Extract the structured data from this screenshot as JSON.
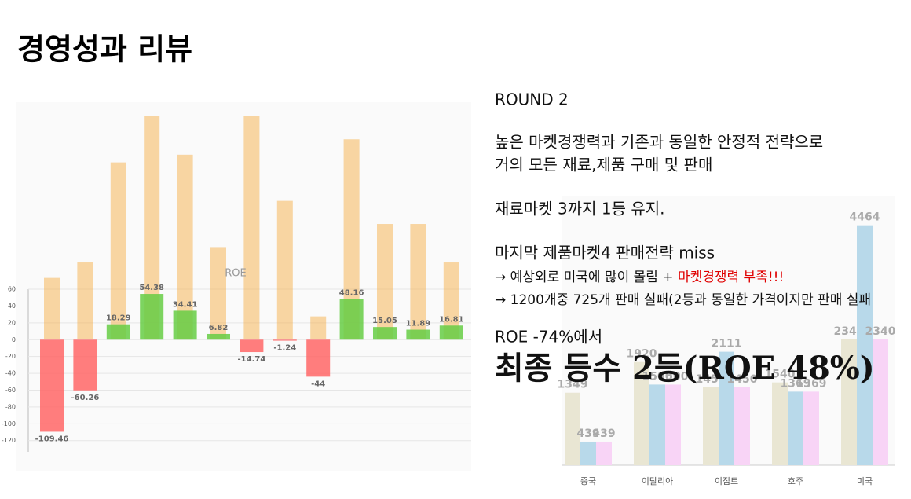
{
  "title": "경영성과 리뷰",
  "text": {
    "round": "ROUND 2",
    "p1": [
      "높은 마켓경쟁력과 기존과 동일한 안정적 전략으로",
      "거의 모든 재료,제품 구매 및 판매"
    ],
    "p2": "재료마켓 3까지 1등 유지.",
    "p3": "마지막 제품마켓4 판매전략 miss",
    "p4a": "→ 예상외로 미국에 많이 몰림 + ",
    "p4b": "마켓경쟁력 부족!!!",
    "p5": "→ 1200개중 725개 판매 실패(2등과 동일한 가격이지만 판매 실패",
    "p6": "ROE -74%에서",
    "final": "최종 등수 2등(ROE 48%)"
  },
  "chart_data": [
    {
      "type": "bar",
      "annotation": "ROE",
      "categories": [
        null,
        null,
        null,
        null,
        null,
        null,
        null,
        null,
        null,
        null,
        null,
        null,
        null
      ],
      "series": [
        {
          "axis": "y2",
          "color": "#f5b04a",
          "values": [
            8,
            10,
            23,
            29,
            24,
            12,
            29,
            18,
            3,
            26,
            15,
            15,
            10
          ]
        },
        {
          "positive_color": "#66cc44",
          "negative_color": "#ff6666",
          "values": [
            -109.46,
            -60.26,
            18.29,
            54.38,
            34.41,
            6.82,
            -14.74,
            -1.24,
            -44,
            48.16,
            15.05,
            11.89,
            16.81
          ]
        }
      ],
      "ylim": [
        -138,
        273
      ],
      "yticks": [
        60,
        40,
        20,
        0,
        -20,
        -40,
        -60,
        -80,
        -100,
        -120
      ],
      "y2lim": [
        -15.1,
        29.8
      ],
      "grid": true
    },
    {
      "type": "bar",
      "categories": [
        "중국",
        "이탈리아",
        "이집트",
        "호주",
        "미국"
      ],
      "series": [
        {
          "color": "#e9e6d3",
          "values": [
            1349,
            1920,
            1450,
            1540,
            2340
          ]
        },
        {
          "color": "#b8d9ea",
          "values": [
            439,
            1500,
            2111,
            1369,
            4464
          ]
        },
        {
          "color": "#f8d4f6",
          "values": [
            439,
            1500,
            1450,
            1369,
            2340
          ]
        }
      ],
      "ylim": [
        0,
        5000
      ]
    }
  ]
}
